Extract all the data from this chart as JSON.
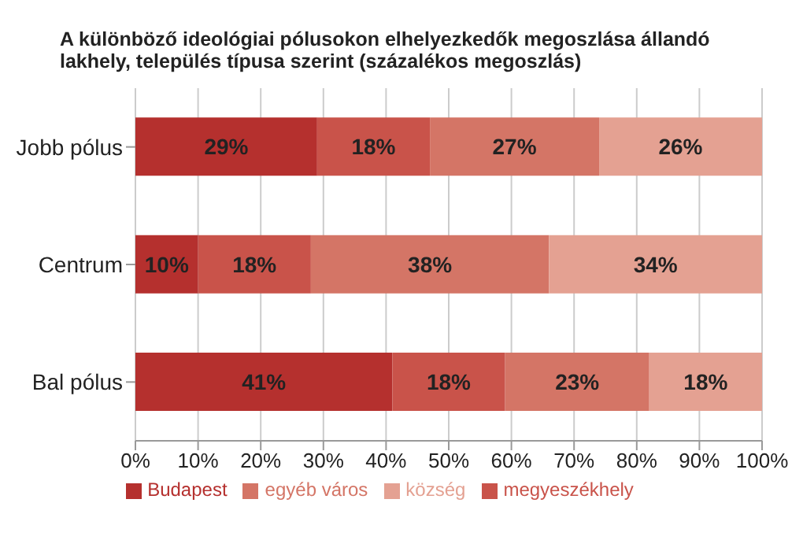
{
  "chart_data": {
    "type": "bar",
    "orientation": "horizontal",
    "stacked": true,
    "title": "A különböző ideológiai pólusokon elhelyezkedők megoszlása állandó lakhely, település típusa szerint (százalékos megoszlás)",
    "categories": [
      "Jobb pólus",
      "Centrum",
      "Bal pólus"
    ],
    "series": [
      {
        "name": "Budapest",
        "color": "#b5302e",
        "values": [
          29,
          10,
          41
        ],
        "value_labels": [
          "29%",
          "10%",
          "41%"
        ]
      },
      {
        "name": "megyeszékhely",
        "color": "#c9534a",
        "values": [
          18,
          18,
          18
        ],
        "value_labels": [
          "18%",
          "18%",
          "18%"
        ]
      },
      {
        "name": "egyéb város",
        "color": "#d47566",
        "values": [
          27,
          38,
          23
        ],
        "value_labels": [
          "27%",
          "38%",
          "23%"
        ]
      },
      {
        "name": "község",
        "color": "#e4a192",
        "values": [
          26,
          34,
          18
        ],
        "value_labels": [
          "26%",
          "34%",
          "18%"
        ]
      }
    ],
    "xlim": [
      0,
      100
    ],
    "xticks": [
      {
        "value": 0,
        "label": "0%"
      },
      {
        "value": 10,
        "label": "10%"
      },
      {
        "value": 20,
        "label": "20%"
      },
      {
        "value": 30,
        "label": "30%"
      },
      {
        "value": 40,
        "label": "40%"
      },
      {
        "value": 50,
        "label": "50%"
      },
      {
        "value": 60,
        "label": "60%"
      },
      {
        "value": 70,
        "label": "70%"
      },
      {
        "value": 80,
        "label": "80%"
      },
      {
        "value": 90,
        "label": "90%"
      },
      {
        "value": 100,
        "label": "100%"
      }
    ],
    "grid": "x",
    "legend": "bottom"
  }
}
